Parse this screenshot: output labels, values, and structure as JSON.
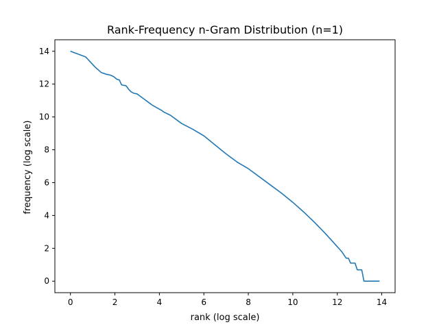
{
  "chart_data": {
    "type": "line",
    "title": "Rank-Frequency n-Gram Distribution (n=1)",
    "xlabel": "rank (log scale)",
    "ylabel": "frequency (log scale)",
    "xlim": [
      -0.7,
      14.6
    ],
    "ylim": [
      -0.7,
      14.7
    ],
    "xticks": [
      0,
      2,
      4,
      6,
      8,
      10,
      12,
      14
    ],
    "yticks": [
      0,
      2,
      4,
      6,
      8,
      10,
      12,
      14
    ],
    "grid": false,
    "line_color": "#1f77b4",
    "series": [
      {
        "x": [
          0.0,
          0.69,
          1.1,
          1.39,
          1.61,
          1.79,
          1.95,
          2.08,
          2.2,
          2.3,
          2.5,
          2.64,
          2.71,
          2.83,
          3.0,
          3.1,
          3.3,
          3.5,
          3.7,
          3.9,
          4.1,
          4.2,
          4.5,
          5.0,
          5.5,
          6.0,
          6.5,
          7.0,
          7.5,
          8.0,
          8.5,
          9.0,
          9.5,
          10.0,
          10.5,
          11.0,
          11.5,
          11.8,
          12.0,
          12.1,
          12.2,
          12.3,
          12.4,
          12.5,
          12.6,
          12.7,
          12.8,
          12.9,
          13.0,
          13.1,
          13.2,
          13.4,
          13.6,
          13.9
        ],
        "y": [
          14.0,
          13.65,
          13.05,
          12.7,
          12.6,
          12.55,
          12.45,
          12.3,
          12.25,
          11.95,
          11.9,
          11.65,
          11.55,
          11.45,
          11.4,
          11.3,
          11.1,
          10.9,
          10.7,
          10.55,
          10.4,
          10.3,
          10.1,
          9.6,
          9.25,
          8.85,
          8.3,
          7.75,
          7.25,
          6.85,
          6.35,
          5.85,
          5.35,
          4.8,
          4.2,
          3.55,
          2.85,
          2.4,
          2.1,
          1.95,
          1.8,
          1.6,
          1.4,
          1.4,
          1.1,
          1.1,
          1.1,
          0.69,
          0.69,
          0.69,
          0.0,
          0.0,
          0.0,
          0.0
        ]
      }
    ]
  }
}
